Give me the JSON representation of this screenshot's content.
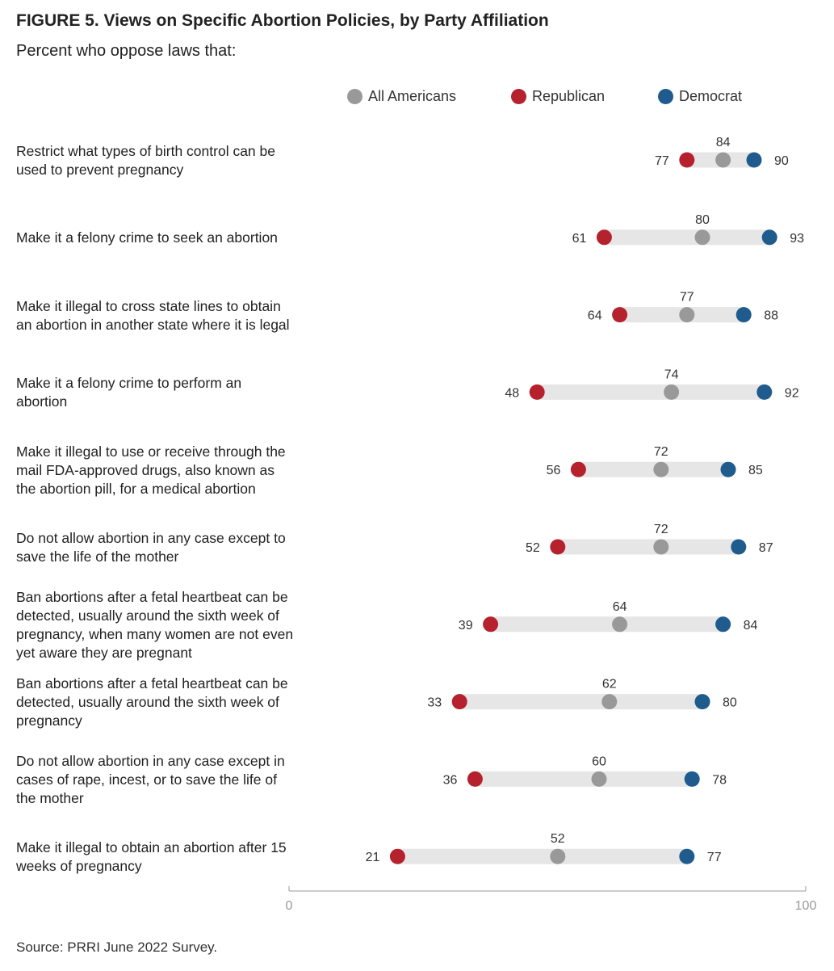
{
  "title": "FIGURE 5.  Views on Specific Abortion Policies, by Party Affiliation",
  "subtitle": "Percent who oppose laws that:",
  "source": "Source: PRRI June 2022 Survey.",
  "colors": {
    "all": "#999999",
    "republican": "#b5212d",
    "democrat": "#1f5b8c",
    "bar": "#e6e6e6",
    "axis": "#bbbbbb"
  },
  "chart_data": {
    "type": "dot",
    "xlim": [
      0,
      100
    ],
    "x_ticks": [
      "0",
      "100"
    ],
    "legend": [
      {
        "key": "all",
        "label": "All Americans"
      },
      {
        "key": "republican",
        "label": "Republican"
      },
      {
        "key": "democrat",
        "label": "Democrat"
      }
    ],
    "series_keys": [
      "republican",
      "all",
      "democrat"
    ],
    "categories": [
      "Restrict what types of birth control can be used to prevent pregnancy",
      "Make it a felony crime to seek an abortion",
      "Make it illegal to cross state lines to obtain an abortion in another state where it is legal",
      "Make it a felony crime to perform an abortion",
      "Make it illegal to use or receive through the mail FDA-approved drugs, also known as the abortion pill, for a medical abortion",
      "Do not allow abortion in any case except to save the life of the mother",
      "Ban abortions after a fetal heartbeat can be detected, usually around the sixth week of pregnancy, when many women are not even yet aware they are pregnant",
      "Ban abortions after a fetal heartbeat can be detected, usually around the sixth week of pregnancy",
      "Do not allow abortion in any case except in cases of rape, incest, or to save the life of the mother",
      "Make it illegal to obtain an abortion after 15 weeks of pregnancy"
    ],
    "series": [
      {
        "name": "All Americans",
        "key": "all",
        "values": [
          84,
          80,
          77,
          74,
          72,
          72,
          64,
          62,
          60,
          52
        ]
      },
      {
        "name": "Republican",
        "key": "republican",
        "values": [
          77,
          61,
          64,
          48,
          56,
          52,
          39,
          33,
          36,
          21
        ]
      },
      {
        "name": "Democrat",
        "key": "democrat",
        "values": [
          90,
          93,
          88,
          92,
          85,
          87,
          84,
          80,
          78,
          77
        ]
      }
    ]
  }
}
